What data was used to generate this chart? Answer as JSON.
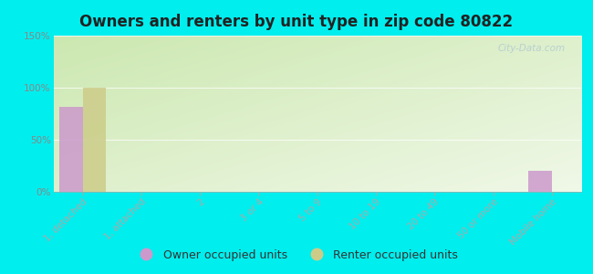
{
  "title": "Owners and renters by unit type in zip code 80822",
  "categories": [
    "1, detached",
    "1, attached",
    "2",
    "3 or 4",
    "5 to 9",
    "10 to 19",
    "20 to 49",
    "50 or more",
    "Mobile home"
  ],
  "owner_values": [
    82,
    0,
    0,
    0,
    0,
    0,
    0,
    0,
    20
  ],
  "renter_values": [
    100,
    0,
    0,
    0,
    0,
    0,
    0,
    0,
    0
  ],
  "owner_color": "#cc99cc",
  "renter_color": "#cccc88",
  "background_color": "#00eeee",
  "ylim": [
    0,
    150
  ],
  "yticks": [
    0,
    50,
    100,
    150
  ],
  "watermark": "City-Data.com",
  "legend_owner": "Owner occupied units",
  "legend_renter": "Renter occupied units",
  "bar_width": 0.4,
  "title_fontsize": 12,
  "tick_fontsize": 7.5,
  "legend_fontsize": 9,
  "title_color": "#222222",
  "tick_color": "#888888",
  "grid_color": "#dddddd",
  "plot_bg_left": "#d8ecc8",
  "plot_bg_right": "#f0f8e8"
}
